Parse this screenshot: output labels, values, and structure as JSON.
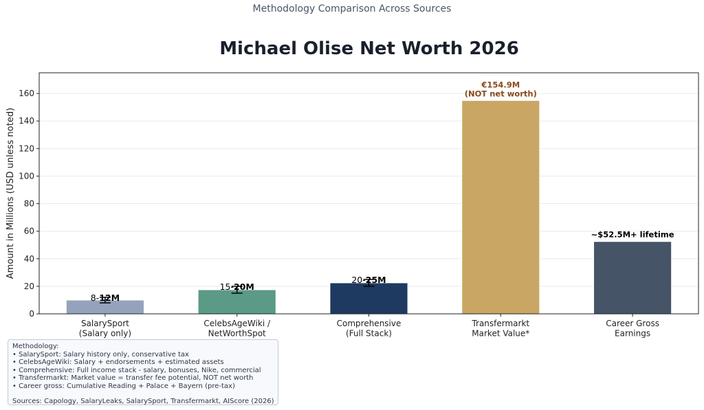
{
  "header": {
    "supertitle": "Methodology Comparison Across Sources",
    "title": "Michael Olise Net Worth 2026"
  },
  "chart_data": {
    "type": "bar",
    "ylabel": "Amount in Millions (USD unless noted)",
    "xlabel": "",
    "ylim": [
      0,
      175
    ],
    "yticks": [
      0,
      20,
      40,
      60,
      80,
      100,
      120,
      140,
      160
    ],
    "grid": "horizontal",
    "categories": [
      [
        "SalarySport",
        "(Salary only)"
      ],
      [
        "CelebsAgeWiki /",
        "NetWorthSpot"
      ],
      [
        "Comprehensive",
        "(Full Stack)"
      ],
      [
        "Transfermarkt",
        "Market Value*"
      ],
      [
        "Career Gross",
        "Earnings"
      ]
    ],
    "values": [
      10,
      17.5,
      22.5,
      154.9,
      52.5
    ],
    "errors": [
      [
        8,
        12
      ],
      [
        15,
        20
      ],
      [
        20,
        25
      ],
      null,
      null
    ],
    "colors": [
      "#94a3bb",
      "#5a9a87",
      "#1e3a60",
      "#c9a663",
      "#465468"
    ],
    "annotations": [
      {
        "prefix": "8-",
        "bold": "12M",
        "color": "#000000",
        "at": 12
      },
      {
        "prefix": "15-",
        "bold": "20M",
        "color": "#000000",
        "at": 20
      },
      {
        "prefix": "20-",
        "bold": "25M",
        "color": "#000000",
        "at": 25
      },
      {
        "lines": [
          "€154.9M",
          "(NOT net worth)"
        ],
        "color": "#8b4a1c",
        "at": 154.9
      },
      {
        "lines": [
          "~$52.5M+ lifetime"
        ],
        "color": "#000000",
        "at": 52.5
      }
    ]
  },
  "methodology": {
    "heading": "Methodology:",
    "items": [
      "• SalarySport: Salary history only, conservative tax",
      "• CelebsAgeWiki: Salary + endorsements + estimated assets",
      "• Comprehensive: Full income stack - salary, bonuses, Nike, commercial",
      "• Transfermarkt: Market value = transfer fee potential, NOT net worth",
      "• Career gross: Cumulative Reading + Palace + Bayern (pre-tax)"
    ],
    "sources": "Sources: Capology, SalaryLeaks, SalarySport, Transfermarkt, AIScore (2026)"
  }
}
